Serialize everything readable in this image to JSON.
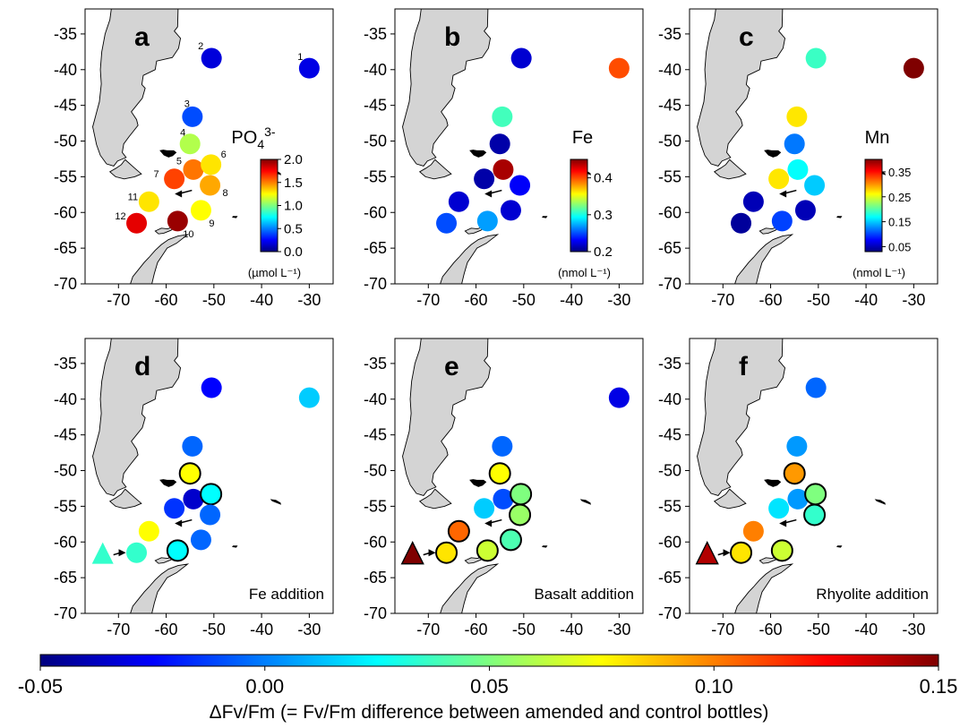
{
  "axes": {
    "x_ticks": [
      -70,
      -60,
      -50,
      -40,
      -30
    ],
    "y_ticks": [
      -35,
      -40,
      -45,
      -50,
      -55,
      -60,
      -65,
      -70
    ],
    "xlim": [
      -77,
      -25
    ],
    "ylim": [
      -70,
      -31.5
    ]
  },
  "colors": {
    "land": "#d4d4d4",
    "jet": [
      "#00007f",
      "#0000ff",
      "#007fff",
      "#00ffff",
      "#7fff7f",
      "#ffff00",
      "#ff7f00",
      "#ff0000",
      "#7f0000"
    ]
  },
  "chart_data": [
    {
      "type": "scatter",
      "panel": "a",
      "variable": "PO4 3-",
      "colorbar": {
        "min": 0.0,
        "max": 2.0,
        "ticks": [
          "2.0",
          "1.5",
          "1.0",
          "0.5",
          "0.0"
        ],
        "unit": "(µmol L⁻¹)"
      },
      "station_labels": [
        "1",
        "2",
        "3",
        "4",
        "5",
        "6",
        "7",
        "8",
        "9",
        "10",
        "11",
        "12"
      ],
      "points": [
        {
          "station": "1",
          "x": -30.0,
          "y": -39.8,
          "value": 0.2
        },
        {
          "station": "2",
          "x": -50.5,
          "y": -38.4,
          "value": 0.18
        },
        {
          "station": "3",
          "x": -54.5,
          "y": -46.6,
          "value": 0.4
        },
        {
          "station": "4",
          "x": -55.0,
          "y": -50.4,
          "value": 1.1
        },
        {
          "station": "5",
          "x": -54.3,
          "y": -54.0,
          "value": 1.52
        },
        {
          "station": "6",
          "x": -50.6,
          "y": -53.3,
          "value": 1.3
        },
        {
          "station": "7",
          "x": -58.3,
          "y": -55.3,
          "value": 1.62
        },
        {
          "station": "8",
          "x": -50.8,
          "y": -56.2,
          "value": 1.42
        },
        {
          "station": "9",
          "x": -52.7,
          "y": -59.7,
          "value": 1.25
        },
        {
          "station": "10",
          "x": -57.6,
          "y": -61.2,
          "value": 1.95
        },
        {
          "station": "11",
          "x": -63.6,
          "y": -58.5,
          "value": 1.3
        },
        {
          "station": "12",
          "x": -66.2,
          "y": -61.5,
          "value": 1.8
        }
      ]
    },
    {
      "type": "scatter",
      "panel": "b",
      "variable": "Fe",
      "colorbar": {
        "min": 0.2,
        "max": 0.45,
        "ticks": [
          "0.4",
          "0.3",
          "0.2"
        ],
        "tick_values": [
          0.4,
          0.3,
          0.2
        ],
        "unit": "(nmol L⁻¹)"
      },
      "points": [
        {
          "x": -30.0,
          "y": -39.8,
          "value": 0.4
        },
        {
          "x": -50.5,
          "y": -38.4,
          "value": 0.22
        },
        {
          "x": -54.5,
          "y": -46.6,
          "value": 0.31
        },
        {
          "x": -55.0,
          "y": -50.4,
          "value": 0.21
        },
        {
          "x": -54.3,
          "y": -54.0,
          "value": 0.44
        },
        {
          "x": -58.3,
          "y": -55.3,
          "value": 0.21
        },
        {
          "x": -50.8,
          "y": -56.2,
          "value": 0.23
        },
        {
          "x": -52.7,
          "y": -59.7,
          "value": 0.22
        },
        {
          "x": -57.6,
          "y": -61.2,
          "value": 0.27
        },
        {
          "x": -63.6,
          "y": -58.5,
          "value": 0.22
        },
        {
          "x": -66.2,
          "y": -61.5,
          "value": 0.25
        }
      ]
    },
    {
      "type": "scatter",
      "panel": "c",
      "variable": "Mn",
      "colorbar": {
        "min": 0.03,
        "max": 0.4,
        "ticks": [
          "0.35",
          "0.25",
          "0.15",
          "0.05"
        ],
        "tick_values": [
          0.35,
          0.25,
          0.15,
          0.05
        ],
        "unit": "(nmol L⁻¹)"
      },
      "points": [
        {
          "x": -30.0,
          "y": -39.8,
          "value": 0.4
        },
        {
          "x": -50.5,
          "y": -38.4,
          "value": 0.19
        },
        {
          "x": -54.5,
          "y": -46.6,
          "value": 0.27
        },
        {
          "x": -55.0,
          "y": -50.4,
          "value": 0.12
        },
        {
          "x": -54.3,
          "y": -54.0,
          "value": 0.17
        },
        {
          "x": -58.3,
          "y": -55.3,
          "value": 0.27
        },
        {
          "x": -50.8,
          "y": -56.2,
          "value": 0.15
        },
        {
          "x": -52.7,
          "y": -59.7,
          "value": 0.05
        },
        {
          "x": -57.6,
          "y": -61.2,
          "value": 0.1
        },
        {
          "x": -63.6,
          "y": -58.5,
          "value": 0.05
        },
        {
          "x": -66.2,
          "y": -61.5,
          "value": 0.04
        }
      ]
    },
    {
      "type": "scatter",
      "panel": "d",
      "annotation": "Fe addition",
      "shared_colorbar": true,
      "triangle": {
        "x": -73.3,
        "y": -61.8,
        "value": 0.035
      },
      "points": [
        {
          "x": -30.0,
          "y": -39.8,
          "value": 0.015,
          "significant": false
        },
        {
          "x": -50.5,
          "y": -38.4,
          "value": -0.025,
          "significant": false
        },
        {
          "x": -54.5,
          "y": -46.6,
          "value": -0.005,
          "significant": false
        },
        {
          "x": -55.0,
          "y": -50.4,
          "value": 0.075,
          "significant": true
        },
        {
          "x": -54.3,
          "y": -54.0,
          "value": -0.035,
          "significant": false
        },
        {
          "x": -50.6,
          "y": -53.3,
          "value": 0.025,
          "significant": true
        },
        {
          "x": -58.3,
          "y": -55.3,
          "value": -0.015,
          "significant": false
        },
        {
          "x": -50.8,
          "y": -56.2,
          "value": -0.005,
          "significant": false
        },
        {
          "x": -52.7,
          "y": -59.7,
          "value": -0.005,
          "significant": false
        },
        {
          "x": -57.6,
          "y": -61.2,
          "value": 0.025,
          "significant": true
        },
        {
          "x": -63.6,
          "y": -58.5,
          "value": 0.075,
          "significant": false
        },
        {
          "x": -66.2,
          "y": -61.5,
          "value": 0.035,
          "significant": false
        }
      ]
    },
    {
      "type": "scatter",
      "panel": "e",
      "annotation": "Basalt addition",
      "shared_colorbar": true,
      "triangle": {
        "x": -73.3,
        "y": -61.8,
        "value": 0.15
      },
      "points": [
        {
          "x": -30.0,
          "y": -39.8,
          "value": -0.03,
          "significant": false
        },
        {
          "x": -54.5,
          "y": -46.6,
          "value": -0.005,
          "significant": false
        },
        {
          "x": -55.0,
          "y": -50.4,
          "value": 0.075,
          "significant": true
        },
        {
          "x": -54.3,
          "y": -54.0,
          "value": -0.01,
          "significant": false
        },
        {
          "x": -50.6,
          "y": -53.3,
          "value": 0.05,
          "significant": true
        },
        {
          "x": -58.3,
          "y": -55.3,
          "value": 0.015,
          "significant": false
        },
        {
          "x": -50.8,
          "y": -56.2,
          "value": 0.055,
          "significant": true
        },
        {
          "x": -52.7,
          "y": -59.7,
          "value": 0.04,
          "significant": true
        },
        {
          "x": -57.6,
          "y": -61.2,
          "value": 0.065,
          "significant": true
        },
        {
          "x": -63.6,
          "y": -58.5,
          "value": 0.105,
          "significant": true
        },
        {
          "x": -66.2,
          "y": -61.5,
          "value": 0.08,
          "significant": true
        }
      ]
    },
    {
      "type": "scatter",
      "panel": "f",
      "annotation": "Rhyolite addition",
      "shared_colorbar": true,
      "triangle": {
        "x": -73.3,
        "y": -61.8,
        "value": 0.14
      },
      "points": [
        {
          "x": -50.5,
          "y": -38.4,
          "value": -0.005,
          "significant": false
        },
        {
          "x": -54.5,
          "y": -46.6,
          "value": 0.005,
          "significant": false
        },
        {
          "x": -55.0,
          "y": -50.4,
          "value": 0.095,
          "significant": true
        },
        {
          "x": -54.3,
          "y": -54.0,
          "value": 0.005,
          "significant": false
        },
        {
          "x": -50.6,
          "y": -53.3,
          "value": 0.05,
          "significant": true
        },
        {
          "x": -58.3,
          "y": -55.3,
          "value": 0.02,
          "significant": false
        },
        {
          "x": -50.8,
          "y": -56.2,
          "value": 0.035,
          "significant": true
        },
        {
          "x": -63.6,
          "y": -58.5,
          "value": 0.1,
          "significant": false
        },
        {
          "x": -57.6,
          "y": -61.2,
          "value": 0.065,
          "significant": true
        },
        {
          "x": -66.2,
          "y": -61.5,
          "value": 0.08,
          "significant": true
        }
      ]
    }
  ],
  "colorbar": {
    "min": -0.05,
    "max": 0.15,
    "tick_values": [
      -0.05,
      0.0,
      0.05,
      0.1,
      0.15
    ],
    "tick_labels": [
      "-0.05",
      "0.00",
      "0.05",
      "0.10",
      "0.15"
    ],
    "label": "ΔFv/Fm (= Fv/Fm difference between amended and control bottles)"
  }
}
